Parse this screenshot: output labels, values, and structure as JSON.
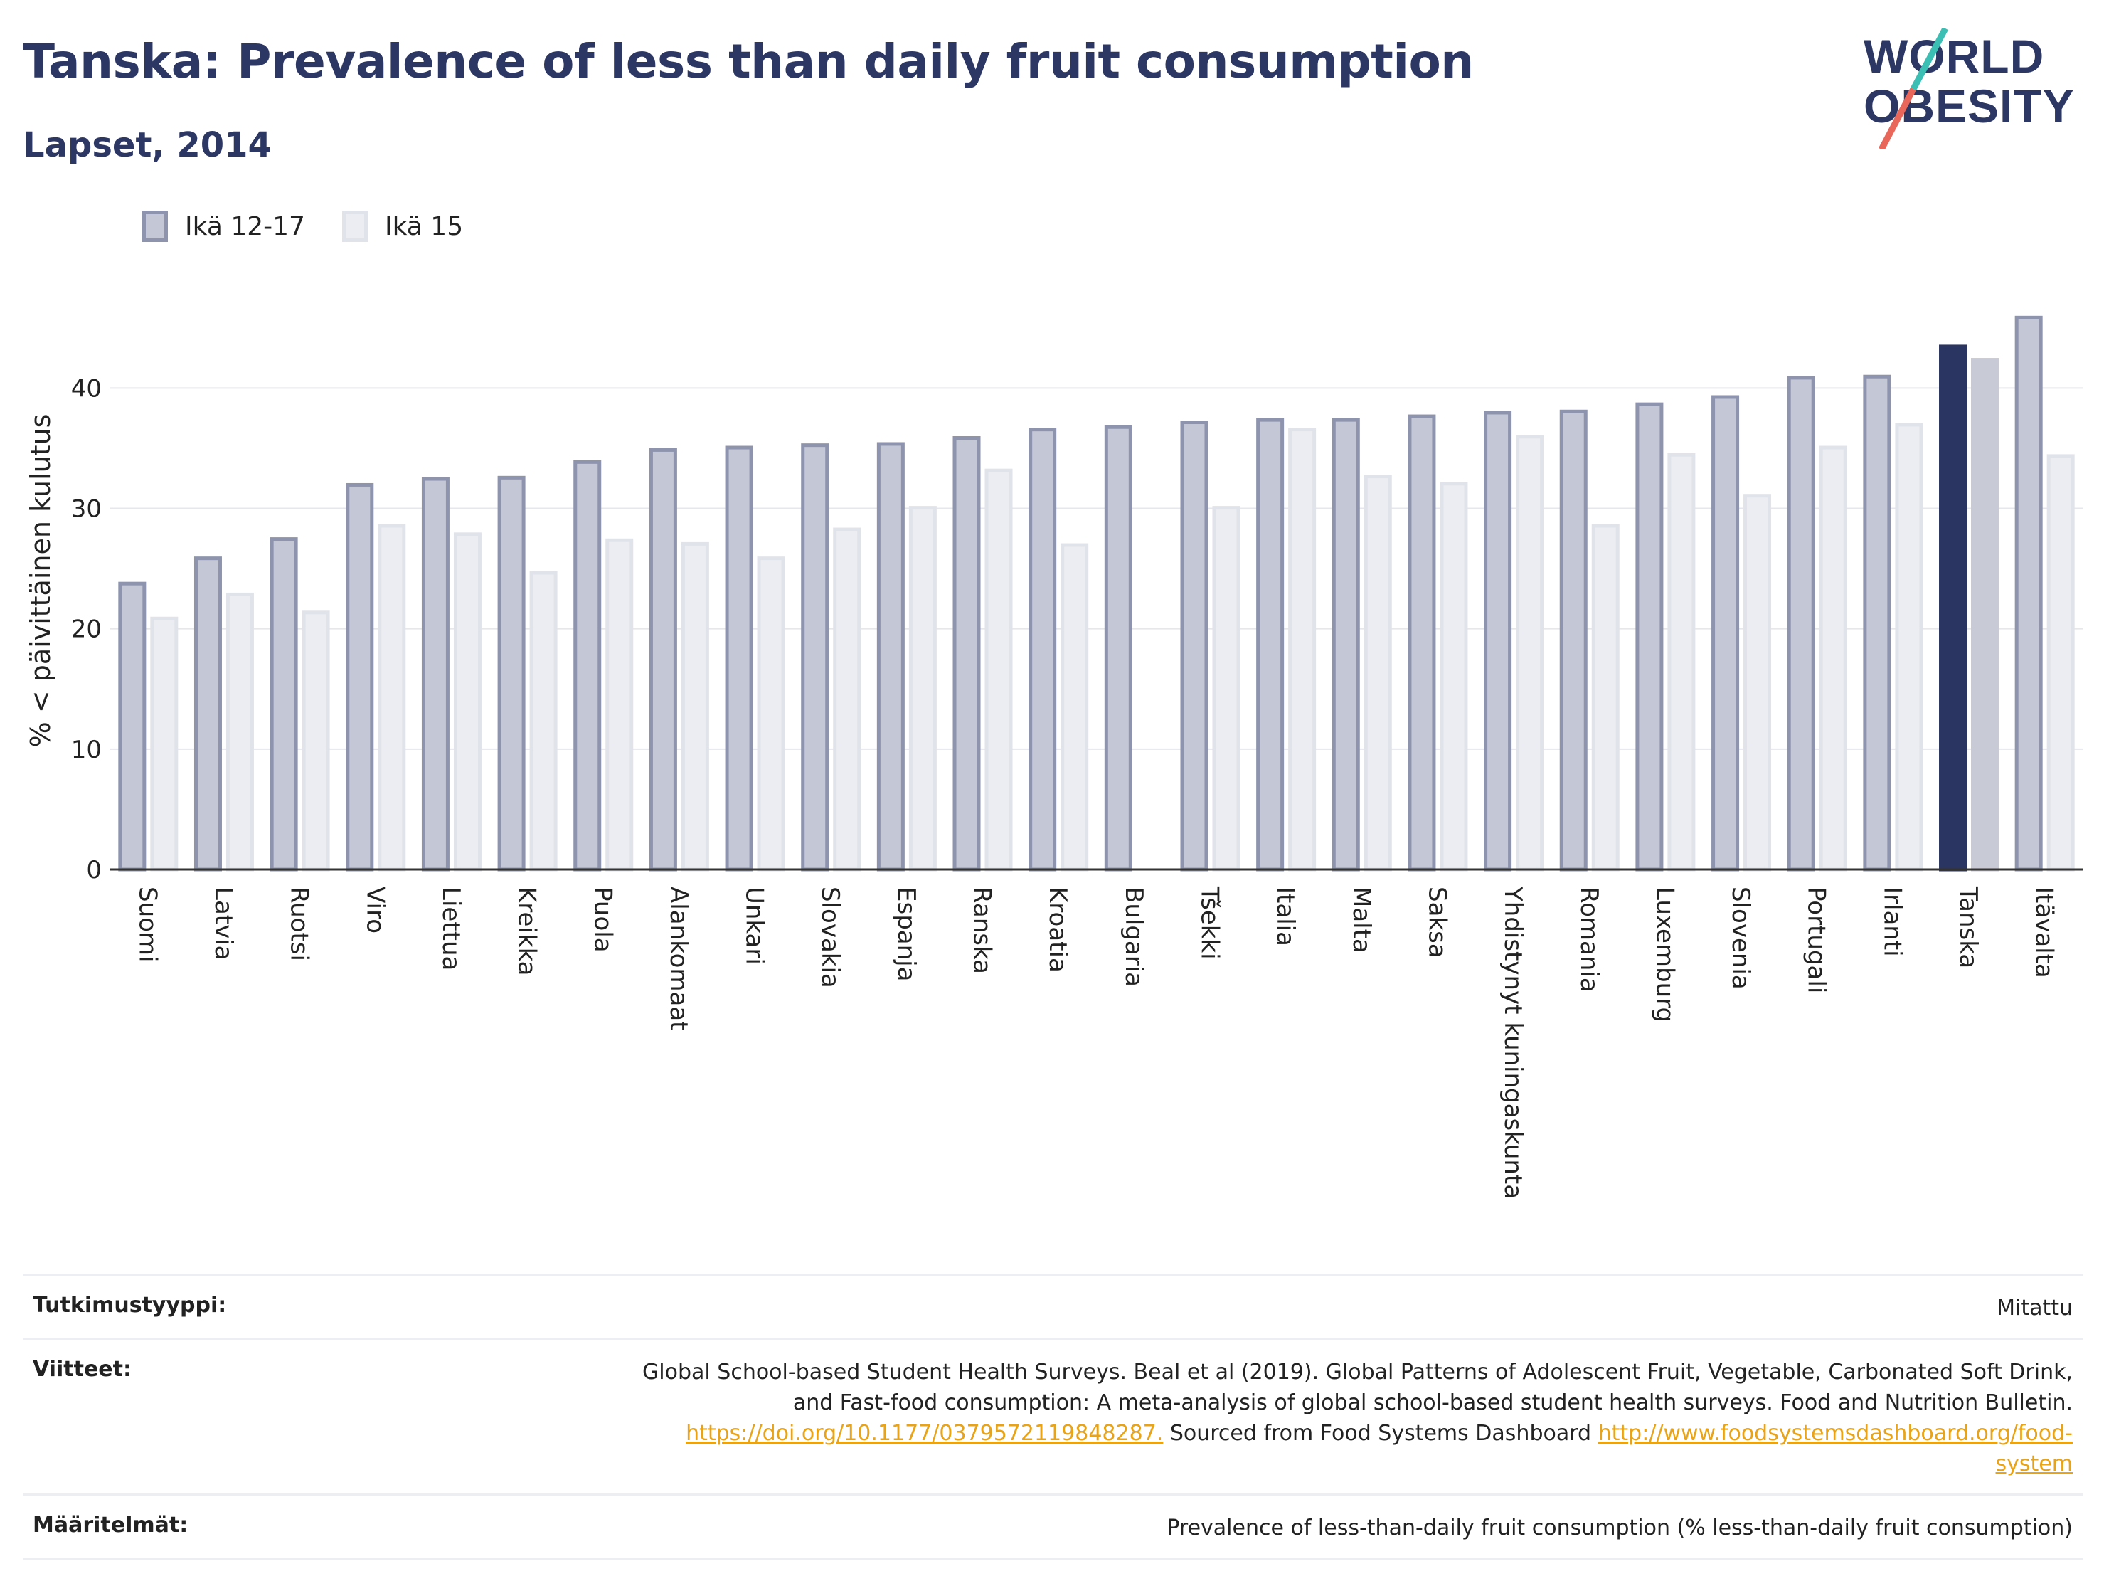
{
  "header": {
    "title": "Tanska: Prevalence of less than daily fruit consumption",
    "subtitle": "Lapset, 2014"
  },
  "logo": {
    "line1": "WORLD",
    "line2": "OBESITY"
  },
  "colors": {
    "series1_fill": "#c4c7d5",
    "series1_stroke": "#8e94ad",
    "series2_fill": "#ecedf2",
    "series2_stroke": "#e1e3ea",
    "highlight1": "#2b3562",
    "highlight2": "#c8cad6",
    "title": "#2c3763",
    "logo_slash_red": "#e8675a",
    "logo_slash_teal": "#3bbfb5"
  },
  "chart_data": {
    "type": "bar",
    "title": "Tanska: Prevalence of less than daily fruit consumption",
    "subtitle": "Lapset, 2014",
    "ylabel": "% < päivittäinen kulutus",
    "xlabel": "",
    "ylim": [
      0,
      48
    ],
    "yticks": [
      0,
      10,
      20,
      30,
      40
    ],
    "grid": true,
    "legend_position": "top-left",
    "highlight_category": "Tanska",
    "categories": [
      "Suomi",
      "Latvia",
      "Ruotsi",
      "Viro",
      "Liettua",
      "Kreikka",
      "Puola",
      "Alankomaat",
      "Unkari",
      "Slovakia",
      "Espanja",
      "Ranska",
      "Kroatia",
      "Bulgaria",
      "Tšekki",
      "Italia",
      "Malta",
      "Saksa",
      "Yhdistynyt kuningaskunta",
      "Romania",
      "Luxemburg",
      "Slovenia",
      "Portugali",
      "Irlanti",
      "Tanska",
      "Itävalta"
    ],
    "series": [
      {
        "name": "Ikä 12-17",
        "values": [
          23.9,
          26.0,
          27.6,
          32.1,
          32.6,
          32.7,
          34.0,
          35.0,
          35.2,
          35.4,
          35.5,
          36.0,
          36.7,
          36.9,
          37.3,
          37.5,
          37.5,
          37.8,
          38.1,
          38.2,
          38.8,
          39.4,
          41.0,
          41.1,
          43.6,
          46.0
        ]
      },
      {
        "name": "Ikä 15",
        "values": [
          21.0,
          23.0,
          21.5,
          28.7,
          28.0,
          24.8,
          27.5,
          27.2,
          26.0,
          28.4,
          30.2,
          33.3,
          27.1,
          null,
          30.2,
          36.7,
          32.8,
          32.2,
          36.1,
          28.7,
          34.6,
          31.2,
          35.2,
          37.1,
          42.5,
          34.5
        ]
      }
    ]
  },
  "info": [
    {
      "key": "Tutkimustyyppi:",
      "value": "Mitattu"
    },
    {
      "key": "Viitteet:",
      "lines": [
        "Global School-based Student Health Surveys. Beal et al (2019). Global Patterns of Adolescent Fruit, Vegetable, Carbonated Soft Drink,",
        "and Fast-food consumption: A meta-analysis of global school-based student health surveys. Food and Nutrition Bulletin."
      ],
      "link1": "https://doi.org/10.1177/0379572119848287.",
      "mid": " Sourced from Food Systems Dashboard ",
      "link2a": "http://www.foodsystemsdashboard.org/food-",
      "link2b": "system"
    },
    {
      "key": "Määritelmät:",
      "value": "Prevalence of less-than-daily fruit consumption (% less-than-daily fruit consumption)"
    }
  ]
}
